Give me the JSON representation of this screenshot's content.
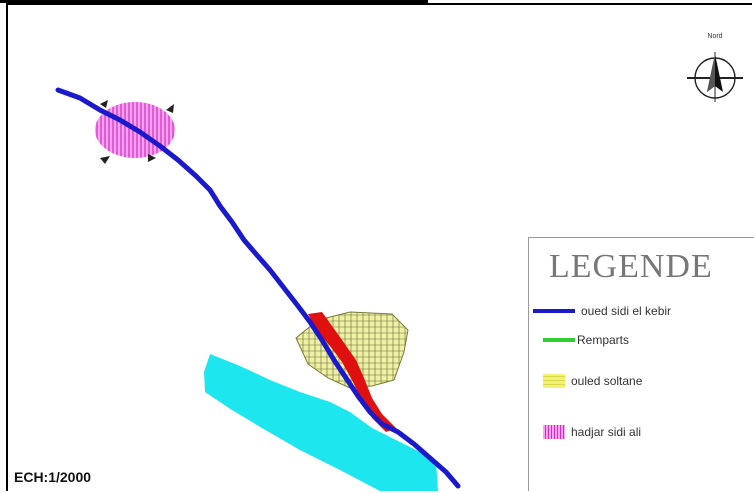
{
  "legend": {
    "title": "LEGENDE",
    "items": [
      {
        "label": "oued sidi el kebir",
        "color": "#1a1acc",
        "kind": "line"
      },
      {
        "label": "Remparts",
        "color": "#33cc33",
        "kind": "line"
      },
      {
        "label": "ouled soltane",
        "color": "#f2f27a",
        "kind": "hatch-yellow"
      },
      {
        "label": "hadjar sidi ali",
        "color": "#ee66dd",
        "kind": "hatch-pink"
      }
    ]
  },
  "scale": {
    "text": "ECH:1/2000"
  },
  "north_arrow": {
    "label": "Nord",
    "icon": "north-arrow-icon"
  },
  "colors": {
    "river": "#1a1acc",
    "water_body": "#1ee6ee",
    "settlement": "#e8ec9a",
    "site": "#ee66dd",
    "accent_red": "#e01010"
  }
}
